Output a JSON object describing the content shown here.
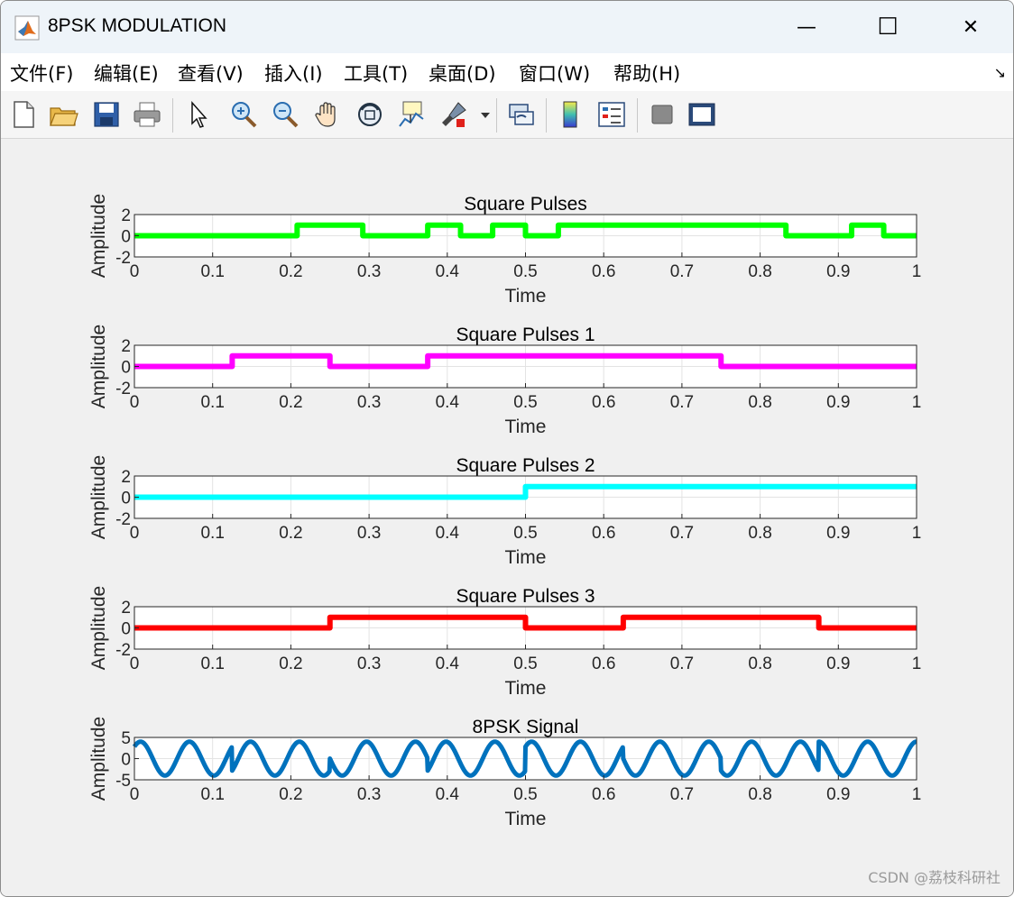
{
  "window": {
    "title": "8PSK MODULATION",
    "minimize_glyph": "—",
    "maximize_glyph": "☐",
    "close_glyph": "✕"
  },
  "menu": {
    "items": [
      "文件(F)",
      "编辑(E)",
      "查看(V)",
      "插入(I)",
      "工具(T)",
      "桌面(D)",
      "窗口(W)",
      "帮助(H)"
    ],
    "overflow_glyph": "↘"
  },
  "toolbar": {
    "icons": [
      "new-figure-icon",
      "open-file-icon",
      "save-icon",
      "print-icon",
      "pointer-icon",
      "zoom-in-icon",
      "zoom-out-icon",
      "pan-hand-icon",
      "rotate-3d-icon",
      "data-cursor-icon",
      "brush-icon",
      "link-plot-icon",
      "colorbar-icon",
      "legend-icon",
      "hide-plot-tools-icon",
      "show-plot-tools-icon"
    ]
  },
  "colors": {
    "pulse": "#00ff00",
    "pulse1": "#ff00ff",
    "pulse2": "#00ffff",
    "pulse3": "#ff0000",
    "signal": "#0072bd"
  },
  "watermark": "CSDN @荔枝科研社",
  "chart_data": [
    {
      "type": "line",
      "title": "Square Pulses",
      "xlabel": "Time",
      "ylabel": "Amplitude",
      "xlim": [
        0,
        1
      ],
      "ylim": [
        -2,
        2
      ],
      "xticks": [
        0,
        0.1,
        0.2,
        0.3,
        0.4,
        0.5,
        0.6,
        0.7,
        0.8,
        0.9,
        1
      ],
      "yticks": [
        -2,
        0,
        2
      ],
      "grid": true,
      "color": "#00ff00",
      "steps": [
        [
          0,
          0
        ],
        [
          0.208,
          0
        ],
        [
          0.208,
          1
        ],
        [
          0.292,
          1
        ],
        [
          0.292,
          0
        ],
        [
          0.375,
          0
        ],
        [
          0.375,
          1
        ],
        [
          0.417,
          1
        ],
        [
          0.417,
          0
        ],
        [
          0.458,
          0
        ],
        [
          0.458,
          1
        ],
        [
          0.5,
          1
        ],
        [
          0.5,
          0
        ],
        [
          0.542,
          0
        ],
        [
          0.542,
          1
        ],
        [
          0.833,
          1
        ],
        [
          0.833,
          0
        ],
        [
          0.917,
          0
        ],
        [
          0.917,
          1
        ],
        [
          0.958,
          1
        ],
        [
          0.958,
          0
        ],
        [
          1,
          0
        ]
      ]
    },
    {
      "type": "line",
      "title": "Square Pulses 1",
      "xlabel": "Time",
      "ylabel": "Amplitude",
      "xlim": [
        0,
        1
      ],
      "ylim": [
        -2,
        2
      ],
      "xticks": [
        0,
        0.1,
        0.2,
        0.3,
        0.4,
        0.5,
        0.6,
        0.7,
        0.8,
        0.9,
        1
      ],
      "yticks": [
        -2,
        0,
        2
      ],
      "grid": true,
      "color": "#ff00ff",
      "steps": [
        [
          0,
          0
        ],
        [
          0.125,
          0
        ],
        [
          0.125,
          1
        ],
        [
          0.25,
          1
        ],
        [
          0.25,
          0
        ],
        [
          0.375,
          0
        ],
        [
          0.375,
          1
        ],
        [
          0.75,
          1
        ],
        [
          0.75,
          0
        ],
        [
          1,
          0
        ]
      ]
    },
    {
      "type": "line",
      "title": "Square Pulses 2",
      "xlabel": "Time",
      "ylabel": "Amplitude",
      "xlim": [
        0,
        1
      ],
      "ylim": [
        -2,
        2
      ],
      "xticks": [
        0,
        0.1,
        0.2,
        0.3,
        0.4,
        0.5,
        0.6,
        0.7,
        0.8,
        0.9,
        1
      ],
      "yticks": [
        -2,
        0,
        2
      ],
      "grid": true,
      "color": "#00ffff",
      "steps": [
        [
          0,
          0
        ],
        [
          0.5,
          0
        ],
        [
          0.5,
          1
        ],
        [
          1,
          1
        ]
      ]
    },
    {
      "type": "line",
      "title": "Square Pulses 3",
      "xlabel": "Time",
      "ylabel": "Amplitude",
      "xlim": [
        0,
        1
      ],
      "ylim": [
        -2,
        2
      ],
      "xticks": [
        0,
        0.1,
        0.2,
        0.3,
        0.4,
        0.5,
        0.6,
        0.7,
        0.8,
        0.9,
        1
      ],
      "yticks": [
        -2,
        0,
        2
      ],
      "grid": true,
      "color": "#ff0000",
      "steps": [
        [
          0,
          0
        ],
        [
          0.25,
          0
        ],
        [
          0.25,
          1
        ],
        [
          0.5,
          1
        ],
        [
          0.5,
          0
        ],
        [
          0.625,
          0
        ],
        [
          0.625,
          1
        ],
        [
          0.875,
          1
        ],
        [
          0.875,
          0
        ],
        [
          1,
          0
        ]
      ]
    },
    {
      "type": "line",
      "title": "8PSK Signal",
      "xlabel": "Time",
      "ylabel": "Amplitude",
      "xlim": [
        0,
        1
      ],
      "ylim": [
        -5,
        5
      ],
      "xticks": [
        0,
        0.1,
        0.2,
        0.3,
        0.4,
        0.5,
        0.6,
        0.7,
        0.8,
        0.9,
        1
      ],
      "yticks": [
        -5,
        0,
        5
      ],
      "grid": true,
      "color": "#0072bd",
      "amplitude": 4,
      "frequency": 16,
      "segment_length": 0.125,
      "segment_phases_deg": [
        45,
        315,
        180,
        315,
        45,
        180,
        225,
        90
      ]
    }
  ]
}
